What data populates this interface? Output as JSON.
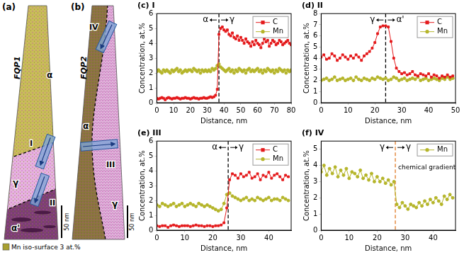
{
  "panels": [
    {
      "label": "(a)",
      "name": "FQP1",
      "regions": [
        "α",
        "γ",
        "α'"
      ],
      "profiles": [
        "I",
        "II"
      ],
      "scale_bar": "50 nm"
    },
    {
      "label": "(b)",
      "name": "FQP2",
      "regions": [
        "α",
        "γ"
      ],
      "profiles": [
        "IV",
        "III"
      ],
      "scale_bar": "50 nm"
    }
  ],
  "iso_surface_legend": "Mn iso-surface 3 at.%",
  "chart_data": [
    {
      "type": "line",
      "title": "(c) I",
      "x_label": "Distance, nm",
      "y_label": "Concentration, at.%",
      "xlim": [
        0,
        80
      ],
      "xticks": [
        0,
        10,
        20,
        30,
        40,
        50,
        60,
        70,
        80
      ],
      "ylim": [
        0,
        6
      ],
      "yticks": [
        0,
        1,
        2,
        3,
        4,
        5,
        6
      ],
      "grid": false,
      "legend": "top right",
      "x": [
        0,
        1,
        2,
        3,
        4,
        5,
        6,
        7,
        8,
        9,
        10,
        11,
        12,
        13,
        14,
        15,
        16,
        17,
        18,
        19,
        20,
        21,
        22,
        23,
        24,
        25,
        26,
        27,
        28,
        29,
        30,
        31,
        32,
        33,
        34,
        35,
        36,
        37,
        38,
        39,
        40,
        41,
        42,
        43,
        44,
        45,
        46,
        47,
        48,
        49,
        50,
        51,
        52,
        53,
        54,
        55,
        56,
        57,
        58,
        59,
        60,
        61,
        62,
        63,
        64,
        65,
        66,
        67,
        68,
        69,
        70,
        71,
        72,
        73,
        74,
        75,
        76,
        77,
        78,
        79,
        80
      ],
      "series": [
        {
          "name": "C",
          "color": "#e41a1c",
          "marker": "square",
          "values": [
            0.3,
            0.25,
            0.3,
            0.35,
            0.3,
            0.2,
            0.3,
            0.35,
            0.3,
            0.25,
            0.3,
            0.3,
            0.35,
            0.3,
            0.25,
            0.3,
            0.3,
            0.35,
            0.3,
            0.3,
            0.25,
            0.3,
            0.35,
            0.3,
            0.3,
            0.25,
            0.3,
            0.3,
            0.35,
            0.3,
            0.3,
            0.35,
            0.4,
            0.35,
            0.4,
            0.5,
            0.9,
            4.6,
            5.0,
            5.1,
            4.9,
            4.8,
            4.9,
            4.6,
            4.5,
            4.7,
            4.4,
            4.3,
            4.5,
            4.2,
            4.4,
            4.2,
            4.0,
            4.3,
            4.1,
            4.0,
            3.8,
            4.1,
            3.9,
            4.2,
            4.0,
            3.9,
            3.7,
            4.0,
            4.3,
            4.1,
            4.2,
            3.8,
            4.0,
            4.2,
            4.1,
            3.9,
            4.0,
            4.2,
            4.1,
            3.9,
            4.0,
            4.1,
            4.2,
            4.0,
            3.9
          ]
        },
        {
          "name": "Mn",
          "color": "#b5b52a",
          "marker": "circle",
          "values": [
            2.1,
            2.2,
            2.1,
            2.0,
            2.2,
            2.1,
            2.2,
            2.1,
            2.0,
            2.2,
            2.1,
            2.2,
            2.3,
            2.1,
            2.2,
            2.0,
            2.1,
            2.2,
            2.1,
            2.2,
            2.2,
            2.1,
            2.3,
            2.2,
            2.1,
            2.2,
            2.0,
            2.2,
            2.1,
            2.2,
            2.1,
            2.2,
            2.1,
            2.3,
            2.2,
            2.3,
            2.5,
            2.6,
            2.4,
            2.3,
            2.2,
            2.1,
            2.2,
            2.3,
            2.1,
            2.2,
            2.0,
            2.2,
            2.1,
            2.3,
            2.2,
            2.1,
            2.2,
            2.0,
            2.2,
            2.3,
            2.1,
            2.2,
            2.1,
            2.2,
            2.3,
            2.1,
            2.2,
            2.0,
            2.2,
            2.1,
            2.3,
            2.2,
            2.1,
            2.2,
            2.0,
            2.2,
            2.1,
            2.3,
            2.2,
            2.1,
            2.2,
            2.0,
            2.2,
            2.1,
            2.2
          ]
        }
      ],
      "boundary": {
        "x": 37,
        "color": "#000000",
        "line_style": "dashed",
        "left": "α",
        "right": "γ"
      }
    },
    {
      "type": "line",
      "title": "(d) II",
      "x_label": "Distance, nm",
      "y_label": "Concentration, at.%",
      "xlim": [
        0,
        50
      ],
      "xticks": [
        0,
        10,
        20,
        30,
        40,
        50
      ],
      "ylim": [
        0,
        8
      ],
      "yticks": [
        0,
        1,
        2,
        3,
        4,
        5,
        6,
        7,
        8
      ],
      "grid": false,
      "legend": "top right",
      "x": [
        0,
        1,
        2,
        3,
        4,
        5,
        6,
        7,
        8,
        9,
        10,
        11,
        12,
        13,
        14,
        15,
        16,
        17,
        18,
        19,
        20,
        21,
        22,
        23,
        24,
        25,
        26,
        27,
        28,
        29,
        30,
        31,
        32,
        33,
        34,
        35,
        36,
        37,
        38,
        39,
        40,
        41,
        42,
        43,
        44,
        45,
        46,
        47,
        48,
        49
      ],
      "series": [
        {
          "name": "C",
          "color": "#e41a1c",
          "marker": "square",
          "values": [
            4.1,
            4.3,
            3.9,
            4.0,
            4.4,
            4.2,
            3.8,
            4.0,
            4.3,
            4.1,
            3.9,
            4.2,
            4.0,
            4.3,
            4.1,
            3.8,
            4.2,
            4.4,
            4.6,
            4.9,
            5.4,
            6.2,
            6.8,
            6.9,
            6.9,
            6.8,
            5.5,
            4.0,
            3.1,
            2.8,
            2.6,
            2.7,
            2.5,
            2.6,
            2.8,
            2.5,
            2.4,
            2.6,
            2.5,
            2.4,
            2.6,
            2.3,
            2.5,
            2.4,
            2.2,
            2.4,
            2.3,
            2.5,
            2.3,
            2.4
          ]
        },
        {
          "name": "Mn",
          "color": "#b5b52a",
          "marker": "circle",
          "values": [
            2.0,
            2.1,
            2.2,
            2.0,
            2.1,
            2.3,
            2.0,
            2.1,
            2.2,
            2.0,
            2.1,
            2.2,
            2.0,
            2.3,
            2.1,
            2.0,
            2.2,
            2.1,
            2.0,
            2.2,
            2.1,
            2.3,
            2.2,
            2.1,
            2.2,
            2.0,
            2.1,
            2.3,
            2.2,
            2.0,
            2.1,
            2.2,
            2.0,
            2.1,
            2.2,
            2.1,
            2.3,
            2.0,
            2.1,
            2.2,
            2.0,
            2.1,
            2.2,
            2.1,
            2.0,
            2.2,
            2.1,
            2.3,
            2.1,
            2.2
          ]
        }
      ],
      "boundary": {
        "x": 24,
        "color": "#000000",
        "line_style": "dashed",
        "left": "γ",
        "right": "α'"
      }
    },
    {
      "type": "line",
      "title": "(e) III",
      "x_label": "Distance, nm",
      "y_label": "Concentration, at.%",
      "xlim": [
        0,
        48
      ],
      "xticks": [
        0,
        10,
        20,
        30,
        40
      ],
      "ylim": [
        0,
        6
      ],
      "yticks": [
        0,
        1,
        2,
        3,
        4,
        5,
        6
      ],
      "grid": false,
      "legend": "top right",
      "x": [
        0,
        1,
        2,
        3,
        4,
        5,
        6,
        7,
        8,
        9,
        10,
        11,
        12,
        13,
        14,
        15,
        16,
        17,
        18,
        19,
        20,
        21,
        22,
        23,
        24,
        25,
        26,
        27,
        28,
        29,
        30,
        31,
        32,
        33,
        34,
        35,
        36,
        37,
        38,
        39,
        40,
        41,
        42,
        43,
        44,
        45,
        46,
        47
      ],
      "series": [
        {
          "name": "C",
          "color": "#e41a1c",
          "marker": "square",
          "values": [
            0.3,
            0.25,
            0.3,
            0.3,
            0.2,
            0.3,
            0.35,
            0.3,
            0.25,
            0.3,
            0.3,
            0.3,
            0.25,
            0.3,
            0.35,
            0.3,
            0.3,
            0.25,
            0.3,
            0.3,
            0.25,
            0.3,
            0.3,
            0.35,
            0.5,
            1.5,
            3.4,
            3.8,
            3.7,
            3.5,
            3.8,
            3.6,
            3.7,
            3.9,
            3.5,
            3.6,
            3.8,
            3.4,
            3.7,
            3.6,
            3.9,
            3.5,
            3.7,
            3.8,
            3.6,
            3.4,
            3.7,
            3.6
          ]
        },
        {
          "name": "Mn",
          "color": "#b5b52a",
          "marker": "circle",
          "values": [
            1.7,
            1.6,
            1.8,
            1.7,
            1.6,
            1.7,
            1.8,
            1.6,
            1.7,
            1.8,
            1.6,
            1.7,
            1.8,
            1.7,
            1.6,
            1.8,
            1.7,
            1.6,
            1.7,
            1.6,
            1.5,
            1.4,
            1.3,
            1.4,
            1.8,
            2.4,
            2.5,
            2.3,
            2.2,
            2.1,
            2.0,
            2.1,
            2.2,
            2.0,
            2.1,
            2.0,
            2.2,
            2.1,
            2.0,
            2.1,
            2.2,
            2.0,
            2.1,
            2.1,
            2.0,
            2.2,
            2.1,
            2.0
          ]
        }
      ],
      "boundary": {
        "x": 25.5,
        "color": "#000000",
        "line_style": "dashed",
        "left": "α",
        "right": "γ"
      }
    },
    {
      "type": "line",
      "title": "(f) IV",
      "x_label": "Distance, nm",
      "y_label": "Concentration, at.%",
      "xlim": [
        0,
        48
      ],
      "xticks": [
        0,
        10,
        20,
        30,
        40
      ],
      "ylim": [
        0,
        5.5
      ],
      "yticks": [
        0,
        1,
        2,
        3,
        4,
        5
      ],
      "grid": false,
      "legend": "top right",
      "x": [
        0,
        1,
        2,
        3,
        4,
        5,
        6,
        7,
        8,
        9,
        10,
        11,
        12,
        13,
        14,
        15,
        16,
        17,
        18,
        19,
        20,
        21,
        22,
        23,
        24,
        25,
        26,
        27,
        28,
        29,
        30,
        31,
        32,
        33,
        34,
        35,
        36,
        37,
        38,
        39,
        40,
        41,
        42,
        43,
        44,
        45,
        46,
        47
      ],
      "series": [
        {
          "name": "Mn",
          "color": "#b5b52a",
          "marker": "circle",
          "values": [
            3.6,
            4.0,
            3.4,
            3.8,
            3.5,
            3.9,
            3.3,
            3.7,
            3.4,
            3.8,
            3.2,
            3.6,
            3.5,
            3.3,
            3.7,
            3.2,
            3.4,
            3.1,
            3.5,
            3.0,
            3.3,
            3.0,
            3.2,
            2.9,
            3.1,
            2.8,
            3.0,
            1.6,
            1.4,
            1.7,
            1.5,
            1.3,
            1.6,
            1.5,
            1.4,
            1.7,
            1.5,
            1.8,
            1.6,
            1.9,
            1.7,
            2.0,
            1.8,
            1.6,
            2.1,
            1.9,
            2.2,
            2.0
          ]
        }
      ],
      "boundary": {
        "x": 26.5,
        "color": "#e07b28",
        "line_style": "dashed",
        "left": "γ",
        "right": "γ"
      },
      "annotations": [
        "chemical gradient"
      ]
    }
  ]
}
